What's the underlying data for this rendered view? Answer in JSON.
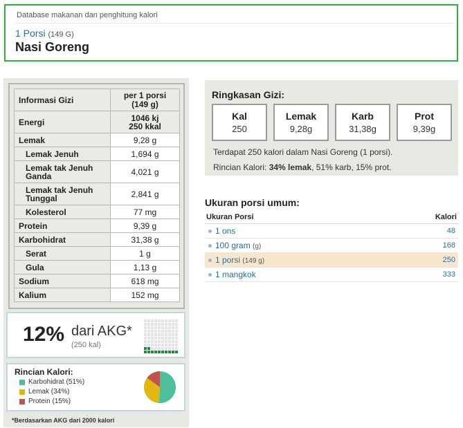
{
  "header": {
    "subtitle": "Database makanan dan penghitung kalori",
    "portion_label": "1 Porsi",
    "portion_weight": "(149 G)",
    "food_name": "Nasi Goreng"
  },
  "nutrition_table": {
    "header_label": "Informasi Gizi",
    "header_value_line1": "per 1 porsi",
    "header_value_line2": "(149 g)",
    "energy": {
      "label": "Energi",
      "kj": "1046 kj",
      "kcal": "250 kkal"
    },
    "rows": [
      {
        "label": "Lemak",
        "value": "9,28 g"
      },
      {
        "label": "Lemak Jenuh",
        "value": "1,694 g"
      },
      {
        "label": "Lemak tak Jenuh Ganda",
        "value": "4,021 g"
      },
      {
        "label": "Lemak tak Jenuh Tunggal",
        "value": "2,841 g"
      },
      {
        "label": "Kolesterol",
        "value": "77 mg"
      },
      {
        "label": "Protein",
        "value": "9,39 g"
      },
      {
        "label": "Karbohidrat",
        "value": "31,38 g"
      },
      {
        "label": "Serat",
        "value": "1 g"
      },
      {
        "label": "Gula",
        "value": "1,13 g"
      },
      {
        "label": "Sodium",
        "value": "618 mg"
      },
      {
        "label": "Kalium",
        "value": "152 mg"
      }
    ]
  },
  "rda": {
    "percent": "12%",
    "label": "dari AKG*",
    "kcal": "(250 kal)",
    "filled_fraction": 0.12
  },
  "calorie_breakdown": {
    "title": "Rincian Kalori:",
    "items": [
      {
        "label": "Karbohidrat (51%)",
        "percent": 51,
        "color": "#4dbf9c"
      },
      {
        "label": "Lemak (34%)",
        "percent": 34,
        "color": "#e2b714"
      },
      {
        "label": "Protein (15%)",
        "percent": 15,
        "color": "#c0524f"
      }
    ]
  },
  "footnote": "*Berdasarkan AKG dari 2000 kalori",
  "summary": {
    "title": "Ringkasan Gizi:",
    "cards": [
      {
        "key": "Kal",
        "value": "250"
      },
      {
        "key": "Lemak",
        "value": "9,28g"
      },
      {
        "key": "Karb",
        "value": "31,38g"
      },
      {
        "key": "Prot",
        "value": "9,39g"
      }
    ],
    "line1": "Terdapat 250 kalori dalam Nasi Goreng (1 porsi).",
    "line2_prefix": "Rincian Kalori: ",
    "line2_bold": "34% lemak",
    "line2_suffix": ", 51% karb, 15% prot."
  },
  "serving_sizes": {
    "title": "Ukuran porsi umum:",
    "col_size": "Ukuran Porsi",
    "col_cal": "Kalori",
    "rows": [
      {
        "name": "1 ons",
        "unit": "",
        "cal": "48"
      },
      {
        "name": "100 gram",
        "unit": "(g)",
        "cal": "168"
      },
      {
        "name": "1 porsi",
        "unit": "(149 g)",
        "cal": "250"
      },
      {
        "name": "1 mangkok",
        "unit": "",
        "cal": "333"
      }
    ]
  },
  "colors": {
    "header_border": "#2bb142",
    "link": "#2a6d98",
    "rda_fill": "#1f8a3c",
    "highlight_row": "#f9e6cf"
  }
}
